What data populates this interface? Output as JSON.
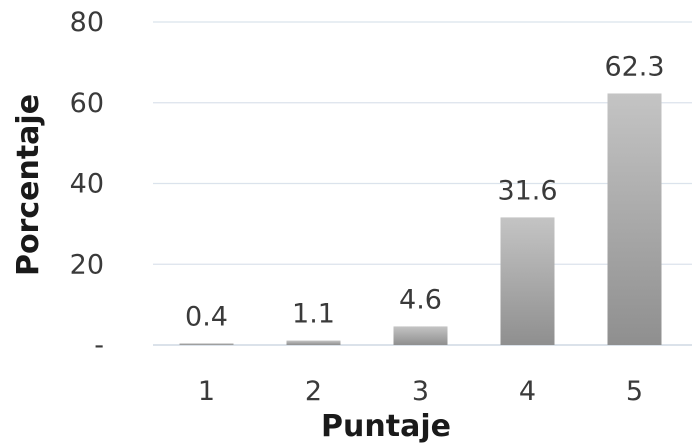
{
  "chart_data": {
    "type": "bar",
    "categories": [
      "1",
      "2",
      "3",
      "4",
      "5"
    ],
    "values": [
      0.4,
      1.1,
      4.6,
      31.6,
      62.3
    ],
    "data_labels": [
      "0.4",
      "1.1",
      "4.6",
      "31.6",
      "62.3"
    ],
    "title": "",
    "xlabel": "Puntaje",
    "ylabel": "Porcentaje",
    "ylim": [
      0,
      80
    ],
    "yticks": [
      0,
      20,
      40,
      60,
      80
    ],
    "ytick_labels": [
      "-",
      "20",
      "40",
      "60",
      "80"
    ],
    "grid": true,
    "legend": "none",
    "bar_color_top": "#c4c4c4",
    "bar_color_bottom": "#8f8f8f"
  }
}
